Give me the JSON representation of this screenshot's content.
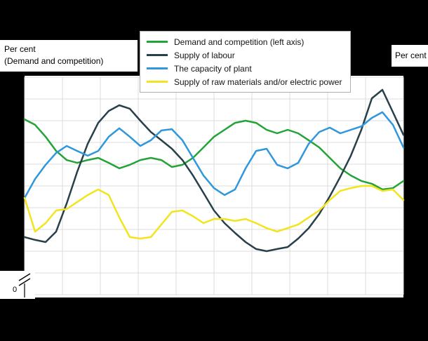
{
  "labels": {
    "left_axis_title_line1": "Per cent",
    "left_axis_title_line2": "(Demand and competition)",
    "right_axis_title": "Per cent",
    "y_zero_label": "0"
  },
  "colors": {
    "background": "#000000",
    "plot_background": "#ffffff",
    "grid": "#dcdcdc",
    "legend_border": "#aeaeae",
    "axis": "#000000"
  },
  "chart_data": {
    "type": "line",
    "title": "",
    "xlabel": "",
    "ylabel_left": "Per cent (Demand and competition)",
    "ylabel_right": "Per cent",
    "ylim": [
      0,
      100
    ],
    "grid": true,
    "legend_position": "top",
    "axis_break_at_zero": true,
    "x_points": 37,
    "series": [
      {
        "name": "Demand and competition (left axis)",
        "color": "#23a338",
        "values": [
          80.6,
          78.1,
          72.6,
          66.1,
          61.9,
          60.6,
          61.9,
          62.9,
          60.6,
          58.1,
          59.7,
          61.9,
          62.9,
          61.9,
          58.7,
          59.7,
          62.9,
          67.7,
          72.6,
          75.8,
          79.0,
          80.0,
          79.0,
          75.8,
          74.2,
          75.8,
          74.2,
          71.0,
          67.7,
          62.9,
          58.1,
          54.8,
          52.3,
          51.0,
          48.4,
          49.0,
          52.3
        ]
      },
      {
        "name": "Supply of labour",
        "color": "#28404a",
        "values": [
          26.5,
          25.2,
          24.2,
          29.0,
          41.9,
          56.5,
          69.4,
          79.0,
          84.5,
          87.1,
          85.5,
          80.0,
          74.8,
          71.0,
          67.1,
          61.9,
          54.8,
          46.8,
          38.7,
          32.9,
          28.4,
          24.2,
          21.0,
          20.0,
          21.0,
          21.9,
          25.8,
          30.6,
          37.1,
          45.2,
          54.2,
          63.9,
          75.8,
          90.3,
          94.2,
          83.9,
          73.5
        ]
      },
      {
        "name": "The capacity of plant",
        "color": "#2f97dc",
        "values": [
          44.5,
          53.2,
          59.7,
          65.2,
          68.4,
          66.1,
          63.9,
          66.1,
          72.6,
          76.5,
          72.6,
          68.4,
          71.0,
          75.5,
          76.1,
          71.0,
          62.9,
          54.8,
          49.0,
          45.8,
          48.4,
          58.1,
          66.1,
          67.1,
          59.7,
          58.1,
          60.6,
          69.4,
          74.8,
          76.8,
          74.2,
          75.8,
          77.4,
          81.3,
          83.9,
          78.1,
          67.7
        ]
      },
      {
        "name": "Supply of raw materials and/or electric power",
        "color": "#f2e41e",
        "values": [
          44.5,
          29.0,
          32.9,
          38.7,
          39.4,
          42.6,
          45.8,
          48.4,
          45.8,
          35.5,
          26.5,
          25.8,
          26.5,
          32.3,
          38.1,
          38.7,
          36.1,
          32.9,
          34.8,
          34.8,
          33.9,
          34.8,
          32.9,
          30.6,
          29.0,
          30.6,
          32.3,
          35.5,
          38.7,
          43.5,
          47.7,
          49.0,
          50.0,
          50.0,
          47.7,
          48.4,
          43.5
        ]
      }
    ]
  }
}
